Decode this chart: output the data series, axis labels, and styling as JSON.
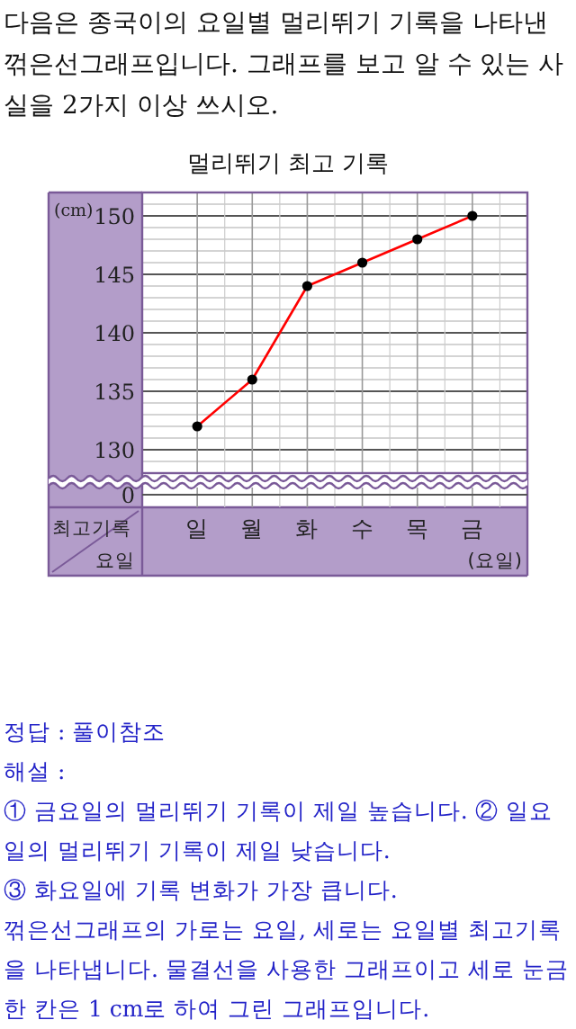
{
  "chart_data": {
    "type": "line",
    "title": "멀리뛰기 최고 기록",
    "xlabel": "(요일)",
    "ylabel": "(cm)",
    "categories": [
      "일",
      "월",
      "화",
      "수",
      "목",
      "금"
    ],
    "series": [
      {
        "color": "#ff0000",
        "values": [
          132,
          136,
          144,
          146,
          148,
          150
        ]
      }
    ],
    "ylim": [
      128,
      152
    ],
    "yticks": [
      130,
      135,
      140,
      145,
      150
    ],
    "grid": true,
    "marker": "circle",
    "annotations": [
      "다음은 종국이의 요일별 멀리뛰기 기록을 나타낸 꺾은선그래프입니다. 그래프를 보고 알 수 있는 사실을 2가지 이상 쓰시오.",
      "0",
      "최고기록",
      "요일",
      "정답 : 풀이참조",
      "해설 :",
      "① 금요일의 멀리뛰기 기록이 제일 높습니다. ② 일요일의 멀리뛰기 기록이 제일 낮습니다.",
      "③ 화요일에 기록 변화가 가장 큽니다.",
      "꺾은선그래프의 가로는 요일, 세로는 요일별 최고기록을 나타냅니다. 물결선을 사용한 그래프이고 세로 눈금 한 칸은 1 cm로 하여 그린 그래프입니다."
    ]
  }
}
